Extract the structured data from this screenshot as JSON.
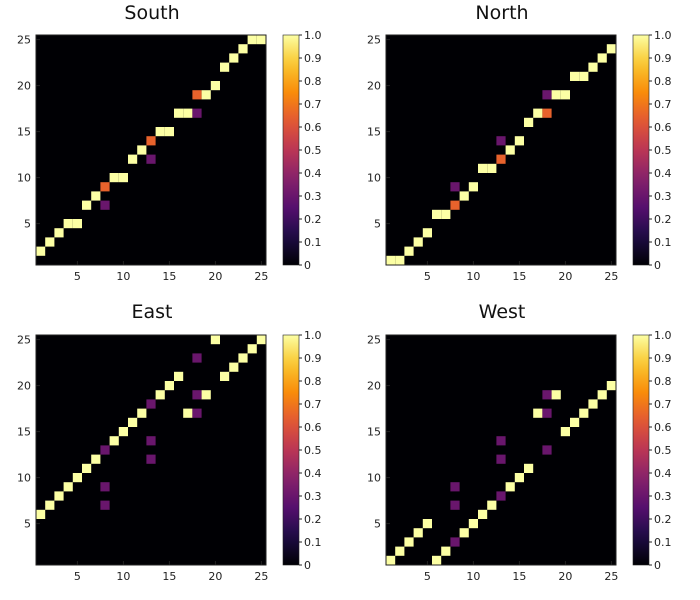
{
  "chart_data": [
    {
      "type": "heatmap",
      "title": "South",
      "x_range": [
        1,
        25
      ],
      "y_range": [
        1,
        25
      ],
      "xticks": [
        "5",
        "10",
        "15",
        "20",
        "25"
      ],
      "yticks": [
        "5",
        "10",
        "15",
        "20",
        "25"
      ],
      "colorbar_ticks": [
        "0",
        "0.1",
        "0.2",
        "0.3",
        "0.4",
        "0.5",
        "0.6",
        "0.7",
        "0.8",
        "0.9",
        "1.0"
      ],
      "colormap": "inferno",
      "cells": [
        [
          1,
          2,
          1
        ],
        [
          2,
          3,
          1
        ],
        [
          3,
          4,
          1
        ],
        [
          4,
          5,
          1
        ],
        [
          5,
          5,
          1
        ],
        [
          6,
          7,
          1
        ],
        [
          7,
          8,
          1
        ],
        [
          8,
          9,
          0.65
        ],
        [
          8,
          7,
          0.3
        ],
        [
          9,
          10,
          1
        ],
        [
          10,
          10,
          1
        ],
        [
          11,
          12,
          1
        ],
        [
          12,
          13,
          1
        ],
        [
          13,
          14,
          0.65
        ],
        [
          13,
          12,
          0.3
        ],
        [
          14,
          15,
          1
        ],
        [
          15,
          15,
          1
        ],
        [
          16,
          17,
          1
        ],
        [
          17,
          17,
          1
        ],
        [
          18,
          19,
          0.65
        ],
        [
          18,
          17,
          0.3
        ],
        [
          19,
          19,
          1
        ],
        [
          20,
          20,
          1
        ],
        [
          21,
          22,
          1
        ],
        [
          22,
          23,
          1
        ],
        [
          23,
          24,
          1
        ],
        [
          24,
          25,
          1
        ],
        [
          25,
          25,
          1
        ]
      ]
    },
    {
      "type": "heatmap",
      "title": "North",
      "x_range": [
        1,
        25
      ],
      "y_range": [
        1,
        25
      ],
      "xticks": [
        "5",
        "10",
        "15",
        "20",
        "25"
      ],
      "yticks": [
        "5",
        "10",
        "15",
        "20",
        "25"
      ],
      "colorbar_ticks": [
        "0",
        "0.1",
        "0.2",
        "0.3",
        "0.4",
        "0.5",
        "0.6",
        "0.7",
        "0.8",
        "0.9",
        "1.0"
      ],
      "colormap": "inferno",
      "cells": [
        [
          1,
          1,
          1
        ],
        [
          2,
          1,
          1
        ],
        [
          3,
          2,
          1
        ],
        [
          4,
          3,
          1
        ],
        [
          5,
          4,
          1
        ],
        [
          6,
          6,
          1
        ],
        [
          7,
          6,
          1
        ],
        [
          8,
          7,
          0.65
        ],
        [
          8,
          9,
          0.3
        ],
        [
          9,
          8,
          1
        ],
        [
          10,
          9,
          1
        ],
        [
          11,
          11,
          1
        ],
        [
          12,
          11,
          1
        ],
        [
          13,
          12,
          0.65
        ],
        [
          13,
          14,
          0.3
        ],
        [
          14,
          13,
          1
        ],
        [
          15,
          14,
          1
        ],
        [
          16,
          16,
          1
        ],
        [
          17,
          17,
          1
        ],
        [
          18,
          17,
          0.65
        ],
        [
          18,
          19,
          0.3
        ],
        [
          19,
          19,
          1
        ],
        [
          20,
          19,
          1
        ],
        [
          21,
          21,
          1
        ],
        [
          22,
          21,
          1
        ],
        [
          23,
          22,
          1
        ],
        [
          24,
          23,
          1
        ],
        [
          25,
          24,
          1
        ]
      ]
    },
    {
      "type": "heatmap",
      "title": "East",
      "x_range": [
        1,
        25
      ],
      "y_range": [
        1,
        25
      ],
      "xticks": [
        "5",
        "10",
        "15",
        "20",
        "25"
      ],
      "yticks": [
        "5",
        "10",
        "15",
        "20",
        "25"
      ],
      "colorbar_ticks": [
        "0",
        "0.1",
        "0.2",
        "0.3",
        "0.4",
        "0.5",
        "0.6",
        "0.7",
        "0.8",
        "0.9",
        "1.0"
      ],
      "colormap": "inferno",
      "cells": [
        [
          1,
          6,
          1
        ],
        [
          2,
          7,
          1
        ],
        [
          3,
          8,
          1
        ],
        [
          4,
          9,
          1
        ],
        [
          5,
          10,
          1
        ],
        [
          6,
          11,
          1
        ],
        [
          7,
          12,
          1
        ],
        [
          8,
          13,
          0.3
        ],
        [
          8,
          9,
          0.3
        ],
        [
          8,
          7,
          0.3
        ],
        [
          9,
          14,
          1
        ],
        [
          10,
          15,
          1
        ],
        [
          11,
          16,
          1
        ],
        [
          12,
          17,
          1
        ],
        [
          13,
          18,
          0.3
        ],
        [
          13,
          14,
          0.3
        ],
        [
          13,
          12,
          0.3
        ],
        [
          14,
          19,
          1
        ],
        [
          15,
          20,
          1
        ],
        [
          16,
          21,
          1
        ],
        [
          17,
          17,
          1
        ],
        [
          18,
          23,
          0.3
        ],
        [
          18,
          19,
          0.3
        ],
        [
          18,
          17,
          0.3
        ],
        [
          19,
          19,
          1
        ],
        [
          20,
          25,
          1
        ],
        [
          21,
          21,
          1
        ],
        [
          22,
          22,
          1
        ],
        [
          23,
          23,
          1
        ],
        [
          24,
          24,
          1
        ],
        [
          25,
          25,
          1
        ]
      ]
    },
    {
      "type": "heatmap",
      "title": "West",
      "x_range": [
        1,
        25
      ],
      "y_range": [
        1,
        25
      ],
      "xticks": [
        "5",
        "10",
        "15",
        "20",
        "25"
      ],
      "yticks": [
        "5",
        "10",
        "15",
        "20",
        "25"
      ],
      "colorbar_ticks": [
        "0",
        "0.1",
        "0.2",
        "0.3",
        "0.4",
        "0.5",
        "0.6",
        "0.7",
        "0.8",
        "0.9",
        "1.0"
      ],
      "colormap": "inferno",
      "cells": [
        [
          1,
          1,
          1
        ],
        [
          2,
          2,
          1
        ],
        [
          3,
          3,
          1
        ],
        [
          4,
          4,
          1
        ],
        [
          5,
          5,
          1
        ],
        [
          6,
          1,
          1
        ],
        [
          7,
          2,
          1
        ],
        [
          8,
          3,
          0.3
        ],
        [
          8,
          7,
          0.3
        ],
        [
          8,
          9,
          0.3
        ],
        [
          9,
          4,
          1
        ],
        [
          10,
          5,
          1
        ],
        [
          11,
          6,
          1
        ],
        [
          12,
          7,
          1
        ],
        [
          13,
          8,
          0.3
        ],
        [
          13,
          12,
          0.3
        ],
        [
          13,
          14,
          0.3
        ],
        [
          14,
          9,
          1
        ],
        [
          15,
          10,
          1
        ],
        [
          16,
          11,
          1
        ],
        [
          17,
          17,
          1
        ],
        [
          18,
          13,
          0.3
        ],
        [
          18,
          17,
          0.3
        ],
        [
          18,
          19,
          0.3
        ],
        [
          19,
          19,
          1
        ],
        [
          20,
          15,
          1
        ],
        [
          21,
          16,
          1
        ],
        [
          22,
          17,
          1
        ],
        [
          23,
          18,
          1
        ],
        [
          24,
          19,
          1
        ],
        [
          25,
          20,
          1
        ]
      ]
    }
  ]
}
